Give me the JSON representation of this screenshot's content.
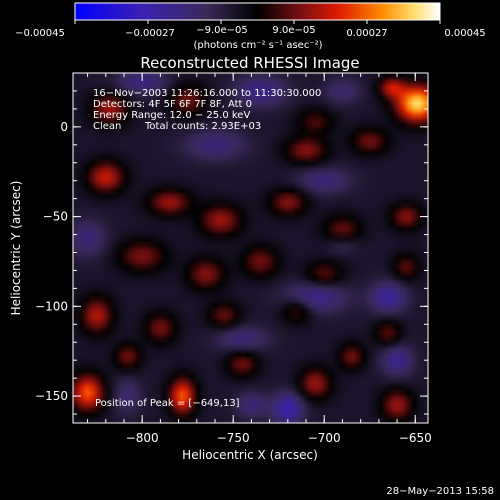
{
  "chart_data": {
    "type": "heatmap",
    "title": "Reconstructed RHESSI Image",
    "xlabel": "Heliocentric X (arcsec)",
    "ylabel": "Heliocentric Y (arcsec)",
    "xlim": [
      -838,
      -643
    ],
    "ylim": [
      -165,
      30
    ],
    "x_ticks": [
      -800,
      -750,
      -700,
      -650
    ],
    "y_ticks": [
      0,
      -50,
      -100,
      -150
    ],
    "x_tick_labels": [
      "−800",
      "−750",
      "−700",
      "−650"
    ],
    "y_tick_labels": [
      "0",
      "−50",
      "−100",
      "−150"
    ],
    "colorbar": {
      "range": [
        -0.00045,
        0.00045
      ],
      "tick_values": [
        -0.00045,
        -0.00027,
        -9e-05,
        9e-05,
        0.00027,
        0.00045
      ],
      "upper_labels": [
        "−9.0e−05",
        "9.0e−05"
      ],
      "lower_labels": [
        "−0.00045",
        "−0.00027",
        "0.00027",
        "0.00045"
      ],
      "units": "(photons cm⁻² s⁻¹ asec⁻²)"
    },
    "annotations": {
      "time": "16−Nov−2003 11:26:16.000 to 11:30:30.000",
      "detectors": "Detectors: 4F 5F 6F 7F 8F, Att 0",
      "energy": "Energy Range: 12.0 − 25.0 keV",
      "method": "Clean",
      "counts": "Total counts: 2.93E+03",
      "peak": "Position of Peak = [−649,13]"
    },
    "blobs": [
      {
        "x": -649,
        "y": 13,
        "value": 0.00045,
        "sx": 8,
        "sy": 7
      },
      {
        "x": -663,
        "y": 22,
        "value": 0.00022,
        "sx": 5,
        "sy": 4
      },
      {
        "x": -818,
        "y": 10,
        "value": 0.0002,
        "sx": 7,
        "sy": 6
      },
      {
        "x": -775,
        "y": 15,
        "value": 0.00016,
        "sx": 7,
        "sy": 6
      },
      {
        "x": -705,
        "y": 3,
        "value": 0.00012,
        "sx": 7,
        "sy": 5
      },
      {
        "x": -710,
        "y": -13,
        "value": 0.00018,
        "sx": 8,
        "sy": 5
      },
      {
        "x": -675,
        "y": -8,
        "value": 0.00016,
        "sx": 7,
        "sy": 5
      },
      {
        "x": -820,
        "y": -28,
        "value": 0.00024,
        "sx": 7,
        "sy": 6
      },
      {
        "x": -785,
        "y": -42,
        "value": 0.0002,
        "sx": 8,
        "sy": 5
      },
      {
        "x": -757,
        "y": -52,
        "value": 0.0002,
        "sx": 8,
        "sy": 6
      },
      {
        "x": -720,
        "y": -42,
        "value": 0.00018,
        "sx": 7,
        "sy": 5
      },
      {
        "x": -690,
        "y": -58,
        "value": 0.00016,
        "sx": 7,
        "sy": 6
      },
      {
        "x": -655,
        "y": -50,
        "value": 0.00018,
        "sx": 6,
        "sy": 5
      },
      {
        "x": -655,
        "y": -78,
        "value": 0.00014,
        "sx": 5,
        "sy": 5
      },
      {
        "x": -800,
        "y": -72,
        "value": 0.00017,
        "sx": 9,
        "sy": 6
      },
      {
        "x": -765,
        "y": -82,
        "value": 0.00018,
        "sx": 7,
        "sy": 6
      },
      {
        "x": -735,
        "y": -75,
        "value": 0.00016,
        "sx": 7,
        "sy": 6
      },
      {
        "x": -700,
        "y": -82,
        "value": 0.00014,
        "sx": 7,
        "sy": 5
      },
      {
        "x": -825,
        "y": -105,
        "value": 0.00022,
        "sx": 6,
        "sy": 7
      },
      {
        "x": -790,
        "y": -112,
        "value": 0.00016,
        "sx": 6,
        "sy": 6
      },
      {
        "x": -755,
        "y": -105,
        "value": 0.00015,
        "sx": 6,
        "sy": 5
      },
      {
        "x": -715,
        "y": -102,
        "value": 0.00014,
        "sx": 6,
        "sy": 5
      },
      {
        "x": -665,
        "y": -115,
        "value": 0.00014,
        "sx": 5,
        "sy": 5
      },
      {
        "x": -830,
        "y": -148,
        "value": 0.00032,
        "sx": 6,
        "sy": 7
      },
      {
        "x": -808,
        "y": -128,
        "value": 0.00016,
        "sx": 5,
        "sy": 5
      },
      {
        "x": -778,
        "y": -150,
        "value": 0.00032,
        "sx": 5,
        "sy": 7
      },
      {
        "x": -745,
        "y": -132,
        "value": 0.00016,
        "sx": 6,
        "sy": 5
      },
      {
        "x": -705,
        "y": -143,
        "value": 0.0002,
        "sx": 6,
        "sy": 6
      },
      {
        "x": -685,
        "y": -128,
        "value": 0.00016,
        "sx": 5,
        "sy": 5
      },
      {
        "x": -660,
        "y": -155,
        "value": 0.0002,
        "sx": 6,
        "sy": 6
      },
      {
        "x": -800,
        "y": 25,
        "value": -0.00013,
        "sx": 10,
        "sy": 5
      },
      {
        "x": -735,
        "y": 20,
        "value": -0.00015,
        "sx": 10,
        "sy": 6
      },
      {
        "x": -690,
        "y": 20,
        "value": -0.0001,
        "sx": 7,
        "sy": 5
      },
      {
        "x": -760,
        "y": -10,
        "value": -0.00012,
        "sx": 12,
        "sy": 6
      },
      {
        "x": -700,
        "y": -30,
        "value": -0.00012,
        "sx": 10,
        "sy": 5
      },
      {
        "x": -830,
        "y": -62,
        "value": -0.00012,
        "sx": 7,
        "sy": 7
      },
      {
        "x": -705,
        "y": -95,
        "value": -0.00016,
        "sx": 12,
        "sy": 6
      },
      {
        "x": -665,
        "y": -95,
        "value": -0.00018,
        "sx": 7,
        "sy": 6
      },
      {
        "x": -660,
        "y": -130,
        "value": -0.00016,
        "sx": 6,
        "sy": 6
      },
      {
        "x": -745,
        "y": -118,
        "value": -0.00012,
        "sx": 10,
        "sy": 5
      },
      {
        "x": -720,
        "y": -157,
        "value": -0.00022,
        "sx": 6,
        "sy": 6
      },
      {
        "x": -740,
        "y": -155,
        "value": -0.00012,
        "sx": 6,
        "sy": 5
      },
      {
        "x": -808,
        "y": -150,
        "value": -0.0001,
        "sx": 5,
        "sy": 7
      },
      {
        "x": -690,
        "y": -65,
        "value": -0.0001,
        "sx": 6,
        "sy": 4
      }
    ]
  },
  "footer": {
    "date": "28−May−2013 15:58"
  }
}
